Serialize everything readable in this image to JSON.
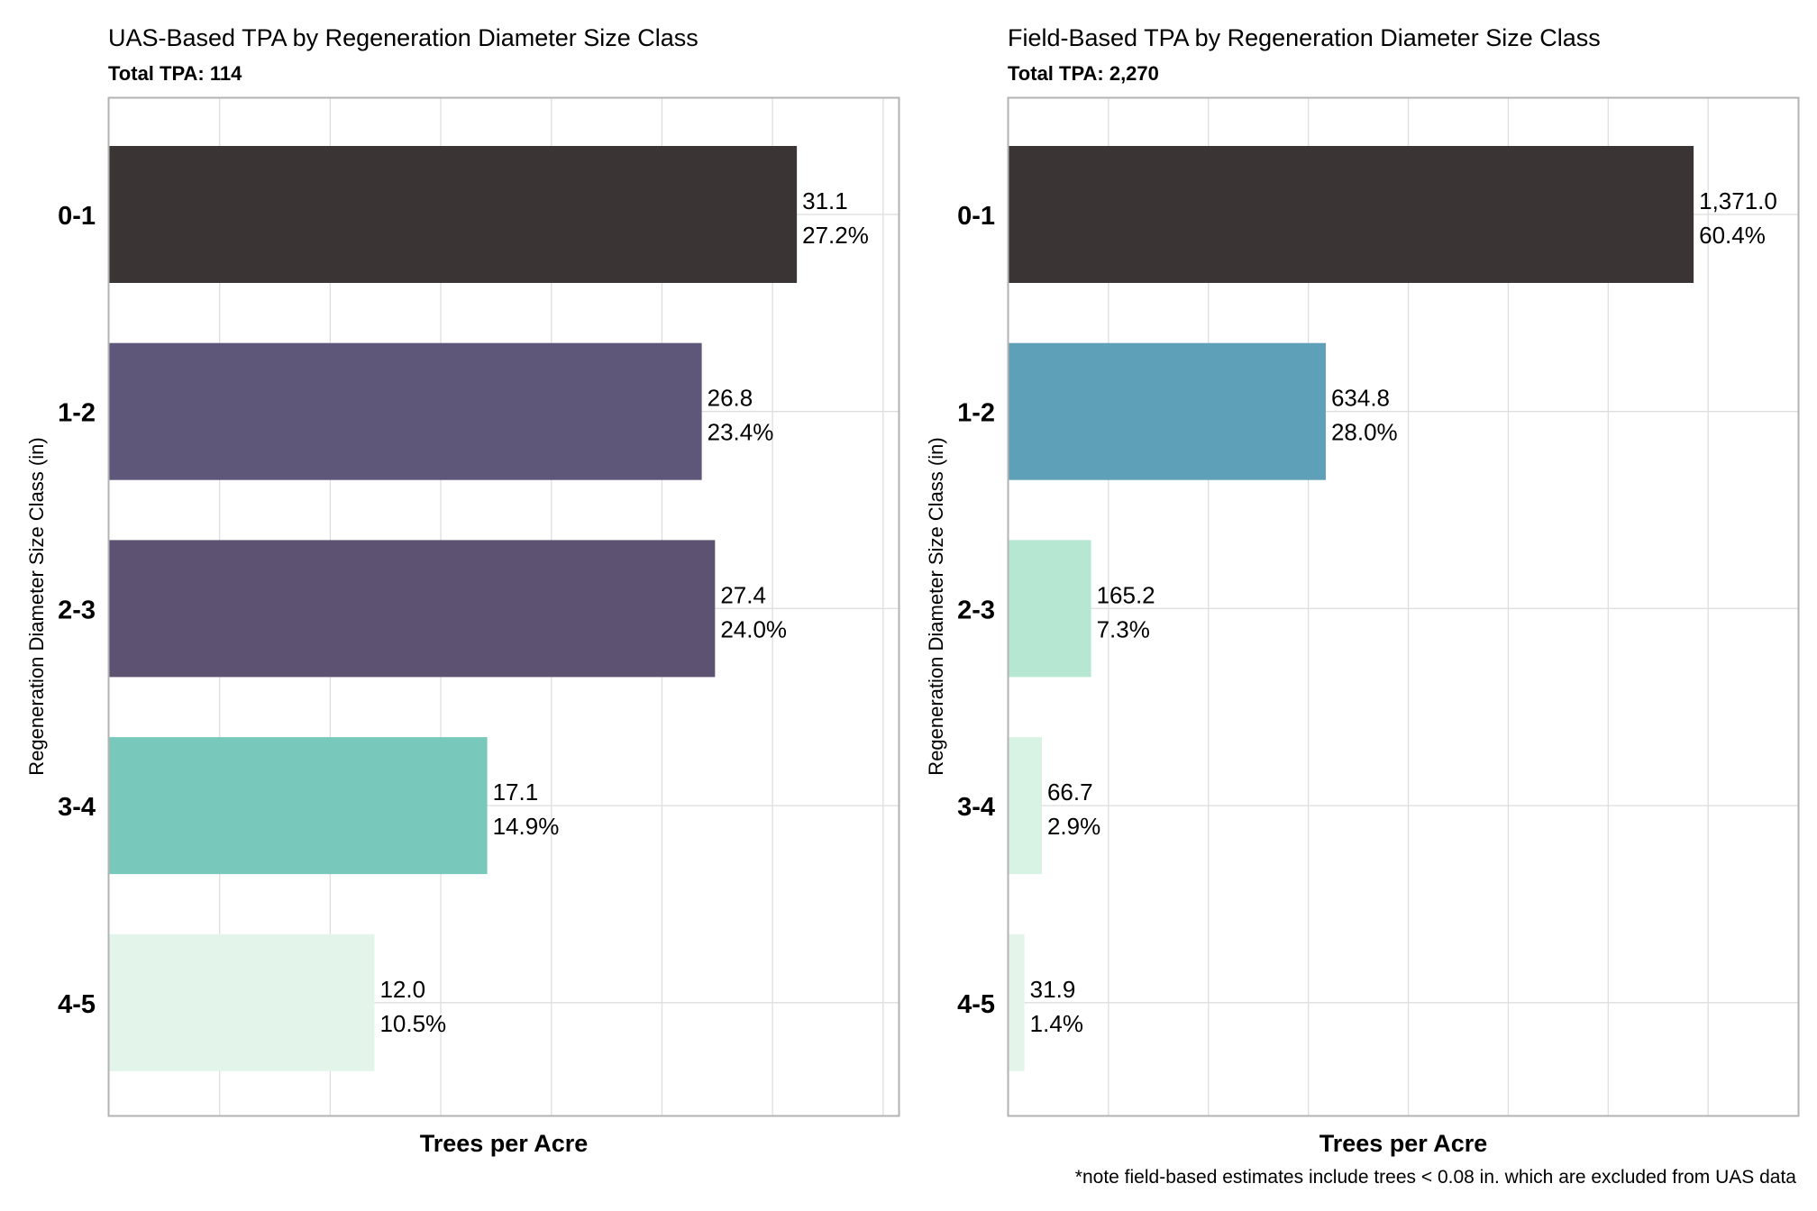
{
  "chart_data": [
    {
      "type": "bar",
      "orientation": "horizontal",
      "title": "UAS-Based TPA by Regeneration Diameter Size Class",
      "subtitle": "Total TPA: 114",
      "xlabel": "Trees per Acre",
      "ylabel": "Regeneration Diameter Size Class (in)",
      "categories": [
        "0-1",
        "1-2",
        "2-3",
        "3-4",
        "4-5"
      ],
      "values": [
        31.1,
        26.8,
        27.4,
        17.1,
        12.0
      ],
      "value_labels": [
        "31.1",
        "26.8",
        "27.4",
        "17.1",
        "12.0"
      ],
      "percent_labels": [
        "27.2%",
        "23.4%",
        "24.0%",
        "14.9%",
        "10.5%"
      ],
      "colors": [
        "#3b3435",
        "#5f5779",
        "#5e5272",
        "#78c9bc",
        "#e3f5ea"
      ],
      "xlim": [
        0,
        35.7
      ],
      "x_gridlines": [
        5,
        10,
        15,
        20,
        25,
        30,
        35
      ],
      "x_tick_labels_shown": false,
      "grid": true,
      "panel_border": true
    },
    {
      "type": "bar",
      "orientation": "horizontal",
      "title": "Field-Based TPA by Regeneration Diameter Size Class",
      "subtitle": "Total TPA: 2,270",
      "xlabel": "Trees per Acre",
      "ylabel": "Regeneration Diameter Size Class (in)",
      "categories": [
        "0-1",
        "1-2",
        "2-3",
        "3-4",
        "4-5"
      ],
      "values": [
        1371.0,
        634.8,
        165.2,
        66.7,
        31.9
      ],
      "value_labels": [
        "1,371.0",
        "634.8",
        "165.2",
        "66.7",
        "31.9"
      ],
      "percent_labels": [
        "60.4%",
        "28.0%",
        "7.3%",
        "2.9%",
        "1.4%"
      ],
      "colors": [
        "#3b3435",
        "#5fa0b9",
        "#b5e7d2",
        "#d8f2e4",
        "#e3f5ea"
      ],
      "xlim": [
        0,
        1580
      ],
      "x_gridlines": [
        200,
        400,
        600,
        800,
        1000,
        1200,
        1400
      ],
      "x_tick_labels_shown": false,
      "grid": true,
      "panel_border": true
    }
  ],
  "footnote": "*note field-based estimates include trees < 0.08 in. which are excluded from UAS data"
}
